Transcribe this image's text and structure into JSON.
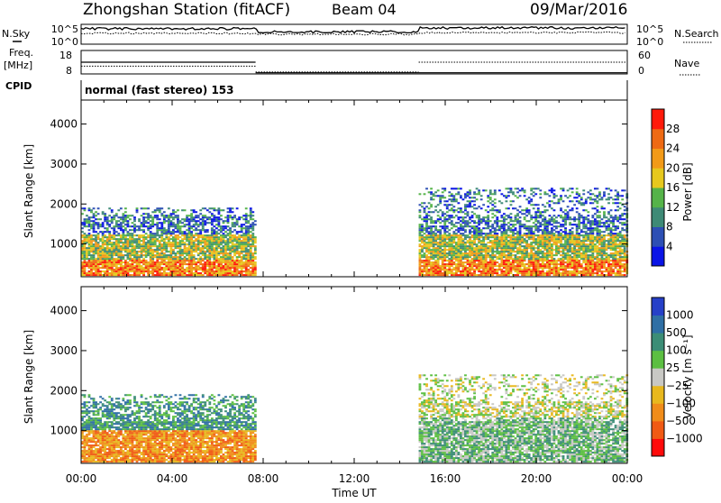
{
  "header": {
    "station": "Zhongshan Station (fitACF)",
    "beam": "Beam 04",
    "date": "09/Mar/2016"
  },
  "strips": {
    "nsky_label": "N.Sky",
    "nsky_ticks": [
      "10^5",
      "10^0"
    ],
    "nsearch_label": "N.Search",
    "nsearch_ticks": [
      "10^5",
      "10^0"
    ],
    "freq_label_1": "Freq.",
    "freq_label_2": "[MHz]",
    "freq_ticks": [
      "18",
      "8"
    ],
    "nave_label": "Nave",
    "nave_ticks": [
      "60",
      "0"
    ],
    "cpid_label": "CPID",
    "cpid_text": "normal (fast stereo) 153"
  },
  "panels": {
    "ylabel": "Slant Range [km]",
    "xlabel": "Time UT",
    "xticks": [
      "00:00",
      "04:00",
      "08:00",
      "12:00",
      "16:00",
      "20:00",
      "00:00"
    ],
    "yticks": [
      "1000",
      "2000",
      "3000",
      "4000"
    ]
  },
  "power_bar": {
    "label": "Power [dB]",
    "ticks": [
      "4",
      "8",
      "12",
      "16",
      "20",
      "24",
      "28"
    ],
    "colors": [
      "#0a14e6",
      "#2d4fb4",
      "#3e8a76",
      "#55b349",
      "#e6c81e",
      "#f29a18",
      "#ee6a14",
      "#ff1a0a"
    ]
  },
  "velocity_bar": {
    "label": "Velocity [m s⁻¹]",
    "ticks": [
      "1000",
      "500",
      "100",
      "25",
      "−25",
      "−100",
      "−500",
      "−1000"
    ],
    "colors": [
      "#2640c8",
      "#2f6fa5",
      "#3c8d76",
      "#5cbf42",
      "#c8c8c4",
      "#e8b81e",
      "#f08c1a",
      "#f05a14",
      "#ff0a0a"
    ]
  },
  "chart_data": {
    "type": "heatmap",
    "title": "Zhongshan Station (fitACF) Beam 04 09/Mar/2016",
    "xlabel": "Time UT",
    "ylabel": "Slant Range [km]",
    "x_range": [
      "00:00",
      "24:00"
    ],
    "y_range_km": [
      180,
      4600
    ],
    "panels": [
      {
        "name": "Power",
        "units": "dB",
        "scale": [
          0,
          30
        ],
        "regions": [
          {
            "time": [
              "00:00",
              "07:40"
            ],
            "range_km": [
              200,
              1900
            ],
            "values_db": "4 to 30, strongest below 600 km"
          },
          {
            "time": [
              "14:50",
              "24:00"
            ],
            "range_km": [
              200,
              2400
            ],
            "values_db": "4 to 30, strongest 200-1000 km near 18:00-22:00"
          }
        ]
      },
      {
        "name": "Velocity",
        "units": "m s^-1",
        "scale": [
          -1000,
          1000
        ],
        "regions": [
          {
            "time": [
              "00:00",
              "07:40"
            ],
            "range_km": [
              200,
              1900
            ],
            "values_ms": "-500 to 500"
          },
          {
            "time": [
              "14:50",
              "24:00"
            ],
            "range_km": [
              200,
              2400
            ],
            "values_ms": "-500 to 500"
          }
        ]
      }
    ],
    "nsky": {
      "scale": "log",
      "range": [
        "10^0",
        "10^5"
      ]
    },
    "frequency_mhz": {
      "range": [
        8,
        18
      ],
      "segments": [
        {
          "time": [
            "00:00",
            "07:40"
          ],
          "mhz": 13
        },
        {
          "time": [
            "07:40",
            "14:50"
          ],
          "mhz": 8.5
        },
        {
          "time": [
            "14:50",
            "24:00"
          ],
          "mhz": 8.5
        }
      ]
    },
    "nave": {
      "range": [
        0,
        60
      ],
      "segments": [
        {
          "time": [
            "00:00",
            "07:40"
          ],
          "value": 20
        },
        {
          "time": [
            "07:40",
            "14:50"
          ],
          "value": 5
        },
        {
          "time": [
            "14:50",
            "24:00"
          ],
          "value": 30
        }
      ]
    }
  }
}
